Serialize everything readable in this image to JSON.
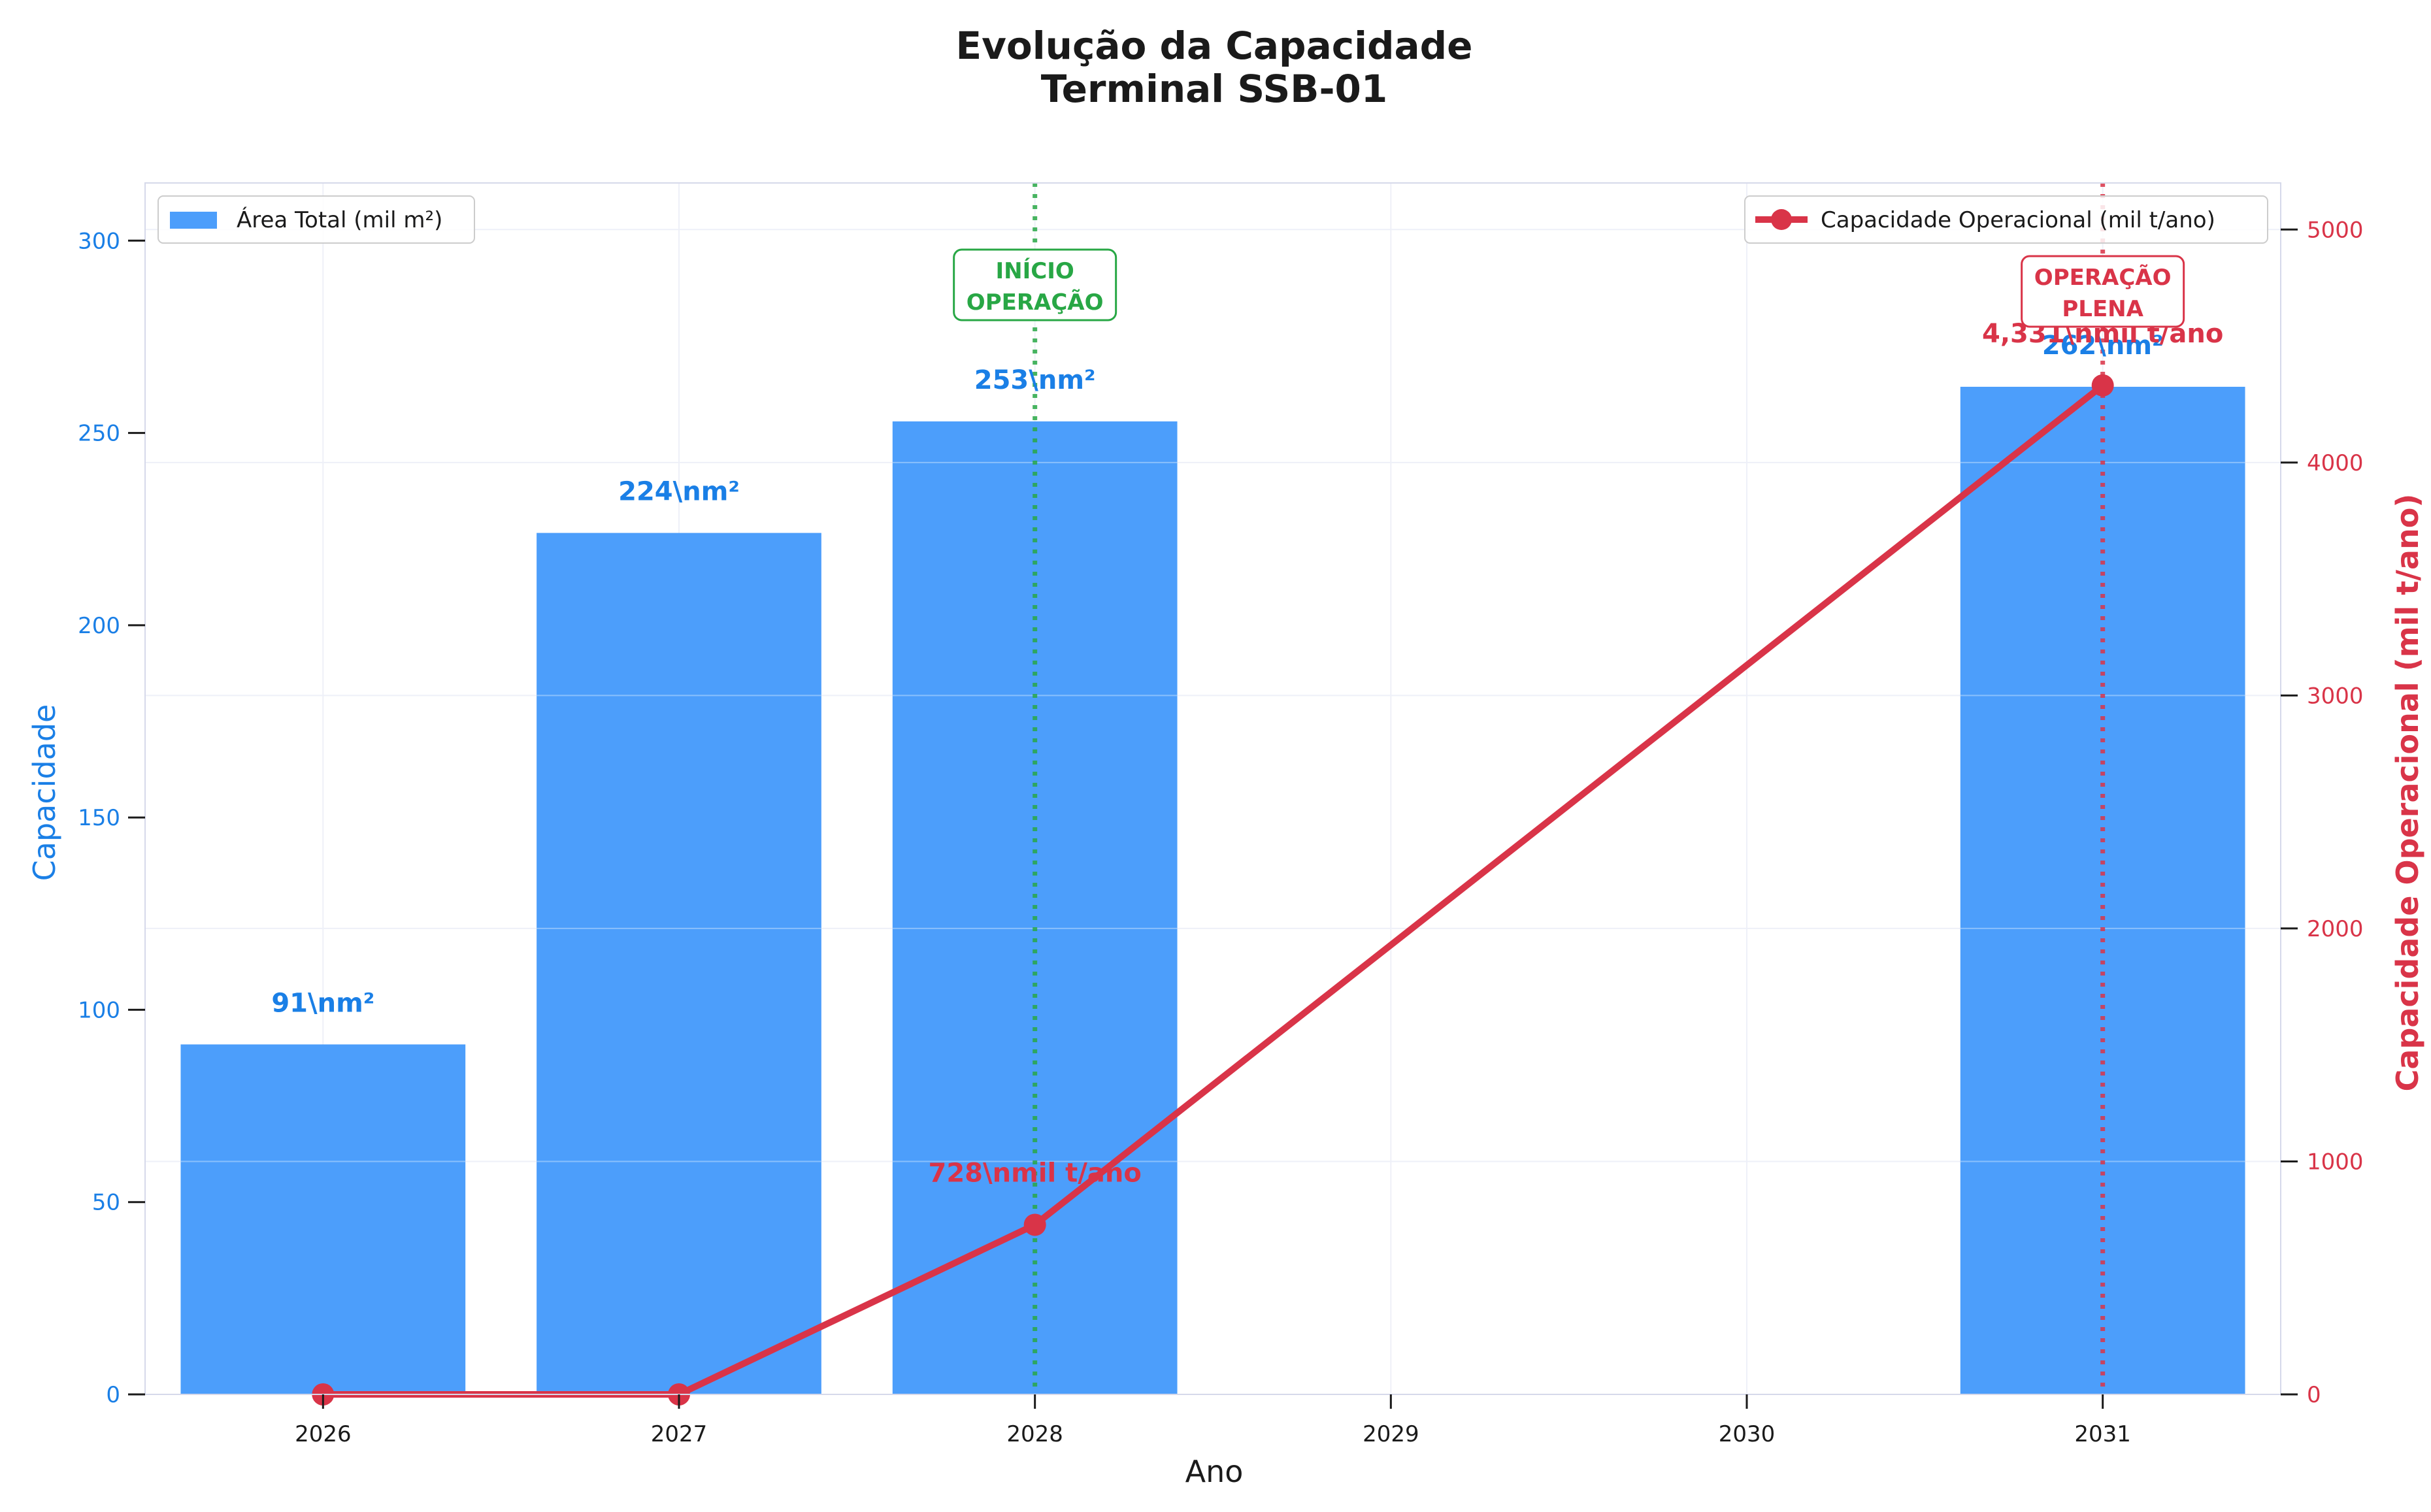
{
  "chart_data": {
    "type": "bar",
    "title": "Evolução da Capacidade",
    "subtitle": "Terminal SSB-01",
    "xlabel": "Ano",
    "ylabel": "Capacidade",
    "y2label": "Capacidade Operacional (mil t/ano)",
    "categories": [
      "2026",
      "2027",
      "2028",
      "2029",
      "2030",
      "2031"
    ],
    "ylim": [
      0,
      315
    ],
    "yticks": [
      "0",
      "50",
      "100",
      "150",
      "200",
      "250",
      "300"
    ],
    "y2lim": [
      0,
      5200
    ],
    "y2ticks": [
      "0",
      "1000",
      "2000",
      "3000",
      "4000",
      "5000"
    ],
    "grid": true,
    "series": [
      {
        "name": "Área Total (mil m²)",
        "kind": "bar",
        "axis": "left",
        "color": "#4c9efb",
        "points": [
          {
            "x": "2026",
            "y": 91,
            "label": "91\\nm²"
          },
          {
            "x": "2027",
            "y": 224,
            "label": "224\\nm²"
          },
          {
            "x": "2028",
            "y": 253,
            "label": "253\\nm²"
          },
          {
            "x": "2031",
            "y": 262,
            "label": "262\\nm²"
          }
        ]
      },
      {
        "name": "Capacidade Operacional (mil t/ano)",
        "kind": "line",
        "axis": "right",
        "color": "#d93448",
        "points": [
          {
            "x": "2026",
            "y": 0,
            "label": ""
          },
          {
            "x": "2027",
            "y": 0,
            "label": ""
          },
          {
            "x": "2028",
            "y": 728,
            "label": "728\\nmil t/ano"
          },
          {
            "x": "2031",
            "y": 4331,
            "label": "4,331\\nmil t/ano"
          }
        ]
      }
    ],
    "annotations": [
      {
        "x": "2028",
        "lines": [
          "INÍCIO",
          "OPERAÇÃO"
        ],
        "color": "#28a745"
      },
      {
        "x": "2031",
        "lines": [
          "OPERAÇÃO",
          "PLENA"
        ],
        "color": "#d93448"
      }
    ],
    "legends": [
      {
        "placement": "top-left",
        "series": 0
      },
      {
        "placement": "top-right",
        "series": 1
      }
    ],
    "colors": {
      "left_axis": "#1a7fe6",
      "right_axis": "#d93448",
      "grid": "#eef0f8",
      "frame": "#d6d9ea"
    }
  }
}
